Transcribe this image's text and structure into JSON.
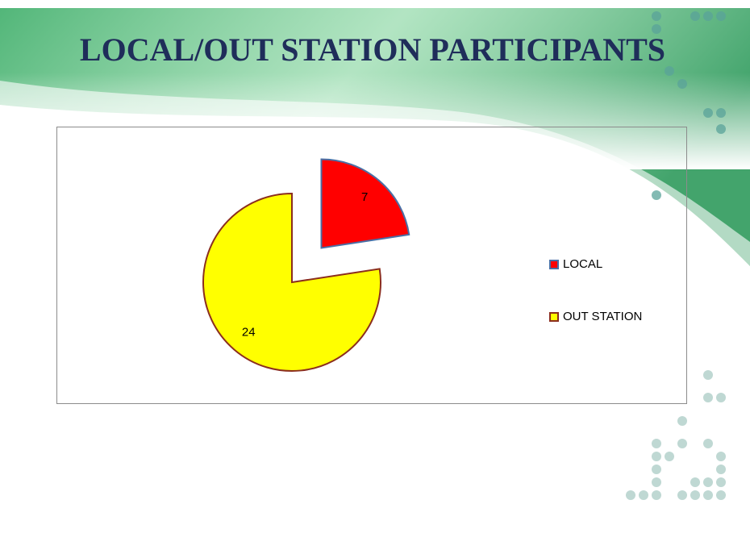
{
  "chart_data": {
    "type": "pie",
    "title": "LOCAL/OUT STATION PARTICIPANTS",
    "categories": [
      "LOCAL",
      "OUT STATION"
    ],
    "values": [
      7,
      24
    ],
    "colors": [
      "#ff0000",
      "#ffff00"
    ],
    "legend": "right"
  }
}
